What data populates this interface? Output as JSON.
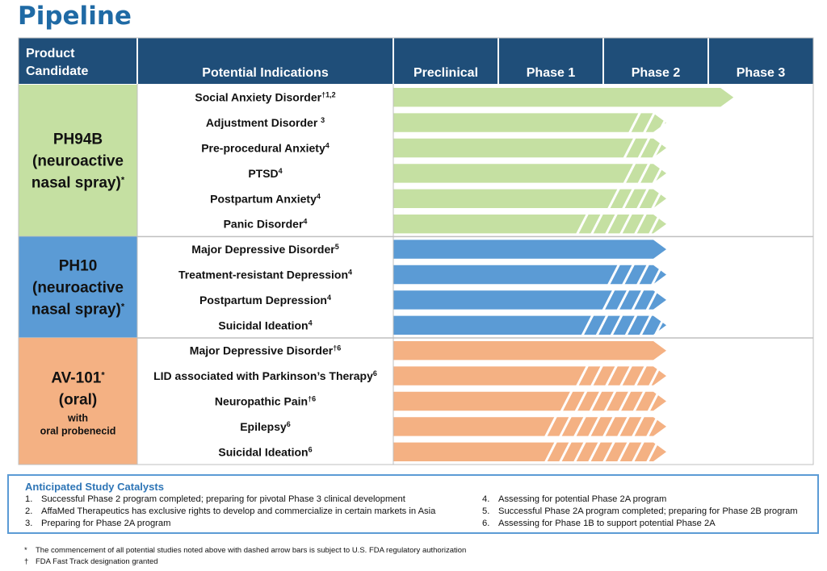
{
  "title": "Pipeline",
  "header": {
    "product": "Product\nCandidate",
    "indications": "Potential Indications",
    "phases": [
      "Preclinical",
      "Phase 1",
      "Phase 2",
      "Phase 3"
    ]
  },
  "colors": {
    "header": "#1f4e79",
    "green": "#c5e0a2",
    "blue": "#5b9bd5",
    "orange": "#f4b183",
    "title": "#1f6aa5"
  },
  "chart_data": {
    "type": "table",
    "phases": [
      "Preclinical",
      "Phase 1",
      "Phase 2",
      "Phase 3"
    ],
    "groups": [
      {
        "candidate": [
          "PH94B",
          "(neuroactive",
          "nasal spray)"
        ],
        "candidate_sup": "*",
        "color": "green",
        "rows": [
          {
            "indication": "Social Anxiety Disorder",
            "sup": "†1,2",
            "progress": 3.24,
            "dashed_from": null
          },
          {
            "indication": "Adjustment Disorder ",
            "sup": "3",
            "progress": 2.6,
            "dashed_from": 2.25
          },
          {
            "indication": "Pre-procedural Anxiety",
            "sup": "4",
            "progress": 2.6,
            "dashed_from": 2.2
          },
          {
            "indication": "PTSD",
            "sup": "4",
            "progress": 2.6,
            "dashed_from": 2.2
          },
          {
            "indication": "Postpartum Anxiety",
            "sup": "4",
            "progress": 2.6,
            "dashed_from": 2.05
          },
          {
            "indication": "Panic Disorder",
            "sup": "4",
            "progress": 2.6,
            "dashed_from": 1.75
          }
        ]
      },
      {
        "candidate": [
          "PH10",
          "(neuroactive",
          "nasal spray)"
        ],
        "candidate_sup": "*",
        "color": "blue",
        "rows": [
          {
            "indication": "Major Depressive Disorder",
            "sup": "5",
            "progress": 2.6,
            "dashed_from": null
          },
          {
            "indication": "Treatment-resistant Depression",
            "sup": "4",
            "progress": 2.6,
            "dashed_from": 2.05
          },
          {
            "indication": "Postpartum Depression",
            "sup": "4",
            "progress": 2.6,
            "dashed_from": 2.0
          },
          {
            "indication": "Suicidal Ideation",
            "sup": "4",
            "progress": 2.6,
            "dashed_from": 1.8
          }
        ]
      },
      {
        "candidate": [
          "AV-101",
          "(oral)"
        ],
        "candidate_sup": "*",
        "candidate_note": [
          "with",
          "oral probenecid"
        ],
        "color": "orange",
        "rows": [
          {
            "indication": "Major Depressive Disorder",
            "sup": "†6",
            "progress": 2.6,
            "dashed_from": null
          },
          {
            "indication": "LID associated with Parkinson’s Therapy",
            "sup": "6",
            "progress": 2.6,
            "dashed_from": 1.75
          },
          {
            "indication": "Neuropathic Pain",
            "sup": "†6",
            "progress": 2.6,
            "dashed_from": 1.6
          },
          {
            "indication": "Epilepsy",
            "sup": "6",
            "progress": 2.6,
            "dashed_from": 1.45
          },
          {
            "indication": "Suicidal Ideation",
            "sup": "6",
            "progress": 2.6,
            "dashed_from": 1.45
          }
        ]
      }
    ]
  },
  "catalysts": {
    "title": "Anticipated Study Catalysts",
    "left": [
      {
        "num": "1.",
        "text": "Successful Phase 2 program completed; preparing for pivotal Phase 3 clinical development"
      },
      {
        "num": "2.",
        "text": "AffaMed Therapeutics has exclusive rights to develop and commercialize in certain markets in Asia"
      },
      {
        "num": "3.",
        "text": "Preparing for Phase 2A program"
      }
    ],
    "right": [
      {
        "num": "4.",
        "text": "Assessing for potential Phase 2A program"
      },
      {
        "num": "5.",
        "text": "Successful Phase 2A program completed; preparing for Phase 2B program"
      },
      {
        "num": "6.",
        "text": "Assessing for Phase 1B to support potential Phase 2A"
      }
    ]
  },
  "footnotes": [
    {
      "sym": "*",
      "text": "The commencement of all potential studies noted above with dashed arrow bars is subject to U.S. FDA regulatory authorization"
    },
    {
      "sym": "†",
      "text": "FDA Fast Track designation granted"
    }
  ]
}
